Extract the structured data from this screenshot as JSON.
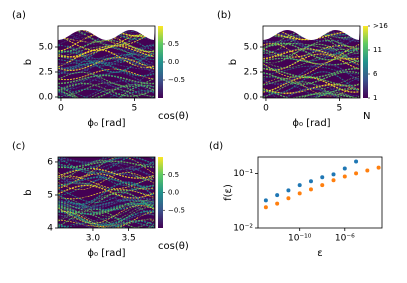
{
  "chart_data": [
    {
      "type": "heatmap",
      "label": "(a)",
      "xlabel": "ϕ₀ [rad]",
      "ylabel": "b",
      "xlim": [
        -0.2,
        6.4
      ],
      "xticks": [
        0,
        5
      ],
      "ylim": [
        -0.1,
        7.1
      ],
      "yticks": [
        {
          "value": 0,
          "label": "0.0"
        },
        2.5,
        {
          "value": 5,
          "label": "5.0"
        }
      ],
      "masked_top": true,
      "colorbar": {
        "label": "cos(θ)",
        "lim": [
          -1,
          1
        ],
        "ticks": [
          0.5,
          {
            "value": 0,
            "label": "0.0"
          },
          {
            "value": -0.5,
            "label": "−0.5"
          }
        ],
        "colors": [
          "#440154",
          "#3b528b",
          "#21918c",
          "#5ec962",
          "#fde725"
        ]
      }
    },
    {
      "type": "heatmap",
      "label": "(b)",
      "xlabel": "ϕ₀ [rad]",
      "ylabel": "b",
      "xlim": [
        -0.2,
        6.4
      ],
      "xticks": [
        0,
        5
      ],
      "ylim": [
        -0.1,
        7.1
      ],
      "yticks": [
        {
          "value": 0,
          "label": "0.0"
        },
        2.5,
        {
          "value": 5,
          "label": "5.0"
        }
      ],
      "masked_top": true,
      "colorbar": {
        "label": "N",
        "lim": [
          1,
          16
        ],
        "ticks": [
          {
            "value": 16,
            "label": ">16"
          },
          11,
          6,
          1
        ],
        "colors": [
          "#440154",
          "#3b528b",
          "#21918c",
          "#5ec962",
          "#fde725"
        ]
      }
    },
    {
      "type": "heatmap",
      "label": "(c)",
      "xlabel": "ϕ₀ [rad]",
      "ylabel": "b",
      "xlim": [
        2.51,
        3.87
      ],
      "xticks": [
        {
          "value": 3,
          "label": "3.0"
        },
        3.5
      ],
      "ylim": [
        4,
        6.15
      ],
      "yticks": [
        4,
        5,
        6
      ],
      "masked_top": false,
      "colorbar": {
        "label": "cos(θ)",
        "lim": [
          -1,
          1
        ],
        "ticks": [
          0.5,
          {
            "value": 0,
            "label": "0.0"
          },
          {
            "value": -0.5,
            "label": "−0.5"
          }
        ],
        "colors": [
          "#440154",
          "#3b528b",
          "#21918c",
          "#5ec962",
          "#fde725"
        ]
      }
    },
    {
      "type": "scatter",
      "label": "(d)",
      "xlabel": "ε",
      "ylabel": "f(ε)",
      "xscale": "log",
      "yscale": "log",
      "xlim": [
        2e-14,
        0.002
      ],
      "xticks": [
        {
          "value": 1e-10,
          "label": "10⁻¹⁰"
        },
        {
          "value": 1e-06,
          "label": "10⁻⁶"
        }
      ],
      "ylim": [
        0.01,
        0.2
      ],
      "yticks": [
        {
          "value": 0.1,
          "label": "10⁻¹"
        },
        {
          "value": 0.01,
          "label": "10⁻²"
        }
      ],
      "series": [
        {
          "color": "#1f77b4",
          "x": [
            1e-13,
            1e-12,
            1e-11,
            1e-10,
            1e-09,
            1e-08,
            1e-07,
            1e-06,
            1e-05
          ],
          "values": [
            0.032,
            0.04,
            0.049,
            0.061,
            0.072,
            0.085,
            0.096,
            0.123,
            0.165
          ]
        },
        {
          "color": "#ff7f0e",
          "x": [
            1e-13,
            1e-12,
            1e-11,
            1e-10,
            1e-09,
            1e-08,
            1e-07,
            1e-06,
            1e-05,
            0.0001,
            0.001
          ],
          "values": [
            0.024,
            0.028,
            0.035,
            0.043,
            0.051,
            0.061,
            0.075,
            0.088,
            0.1,
            0.113,
            0.128
          ]
        }
      ]
    }
  ]
}
